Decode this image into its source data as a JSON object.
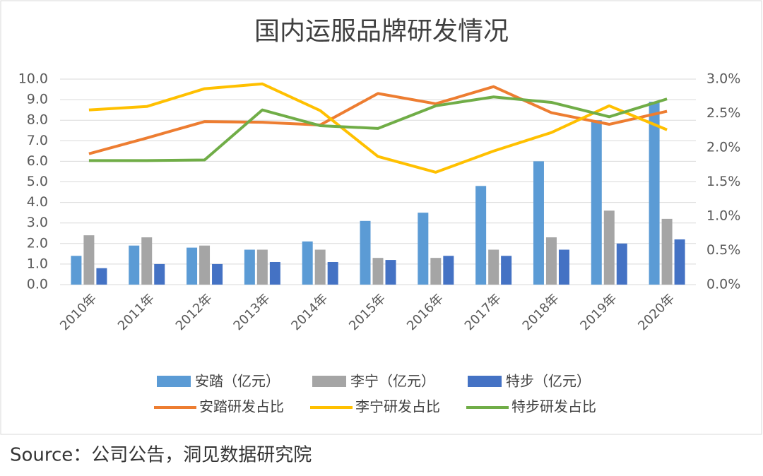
{
  "chart_data": {
    "type": "combo",
    "title": "国内运服品牌研发情况",
    "categories": [
      "2010年",
      "2011年",
      "2012年",
      "2013年",
      "2014年",
      "2015年",
      "2016年",
      "2017年",
      "2018年",
      "2019年",
      "2020年"
    ],
    "series": [
      {
        "name": "安踏（亿元）",
        "type": "bar",
        "color": "#5b9bd5",
        "values": [
          1.4,
          1.9,
          1.8,
          1.7,
          2.1,
          3.1,
          3.5,
          4.8,
          6.0,
          8.0,
          8.9
        ]
      },
      {
        "name": "李宁（亿元）",
        "type": "bar",
        "color": "#a5a5a5",
        "values": [
          2.4,
          2.3,
          1.9,
          1.7,
          1.7,
          1.3,
          1.3,
          1.7,
          2.3,
          3.6,
          3.2
        ]
      },
      {
        "name": "特步（亿元）",
        "type": "bar",
        "color": "#4472c4",
        "values": [
          0.8,
          1.0,
          1.0,
          1.1,
          1.1,
          1.2,
          1.4,
          1.4,
          1.7,
          2.0,
          2.2
        ]
      },
      {
        "name": "安踏研发占比",
        "type": "line",
        "axis": "y2",
        "color": "#ed7d31",
        "values": [
          1.91,
          2.14,
          2.38,
          2.37,
          2.33,
          2.79,
          2.64,
          2.89,
          2.51,
          2.34,
          2.53
        ]
      },
      {
        "name": "李宁研发占比",
        "type": "line",
        "axis": "y2",
        "color": "#ffc000",
        "values": [
          2.55,
          2.6,
          2.86,
          2.93,
          2.54,
          1.87,
          1.64,
          1.95,
          2.22,
          2.61,
          2.26
        ]
      },
      {
        "name": "特步研发占比",
        "type": "line",
        "axis": "y2",
        "color": "#70ad47",
        "values": [
          1.81,
          1.81,
          1.82,
          2.55,
          2.32,
          2.28,
          2.61,
          2.74,
          2.66,
          2.45,
          2.71
        ]
      }
    ],
    "ylim": [
      0,
      10
    ],
    "yticks": [
      {
        "value": 0,
        "label": "0.0"
      },
      {
        "value": 1,
        "label": "1.0"
      },
      {
        "value": 2,
        "label": "2.0"
      },
      {
        "value": 3,
        "label": "3.0"
      },
      {
        "value": 4,
        "label": "4.0"
      },
      {
        "value": 5,
        "label": "5.0"
      },
      {
        "value": 6,
        "label": "6.0"
      },
      {
        "value": 7,
        "label": "7.0"
      },
      {
        "value": 8,
        "label": "8.0"
      },
      {
        "value": 9,
        "label": "9.0"
      },
      {
        "value": 10,
        "label": "10.0"
      }
    ],
    "y2lim": [
      0,
      3
    ],
    "y2ticks": [
      {
        "value": 0,
        "label": "0.0%"
      },
      {
        "value": 0.5,
        "label": "0.5%"
      },
      {
        "value": 1,
        "label": "1.0%"
      },
      {
        "value": 1.5,
        "label": "1.5%"
      },
      {
        "value": 2,
        "label": "2.0%"
      },
      {
        "value": 2.5,
        "label": "2.5%"
      },
      {
        "value": 3,
        "label": "3.0%"
      }
    ],
    "grid": true,
    "source": "Source：公司公告，洞见数据研究院"
  }
}
